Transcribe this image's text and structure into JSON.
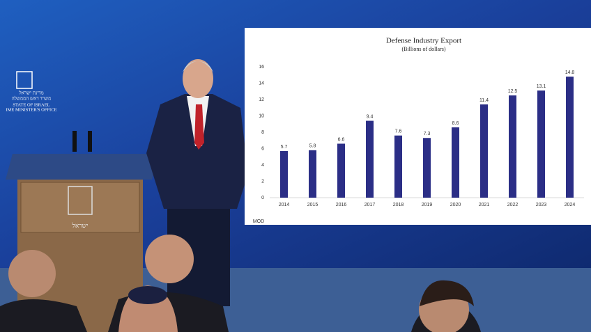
{
  "emblem": {
    "hebrew_1": "מדינת ישראל",
    "hebrew_2": "משרד ראש הממשלה",
    "english_1": "STATE OF ISRAEL",
    "english_2": "IME MINISTER'S OFFICE"
  },
  "podium": {
    "label": "ישראל"
  },
  "chart_data": {
    "type": "bar",
    "title": "Defense Industry Export",
    "subtitle": "(Billions of dollars)",
    "categories": [
      "2014",
      "2015",
      "2016",
      "2017",
      "2018",
      "2019",
      "2020",
      "2021",
      "2022",
      "2023",
      "2024"
    ],
    "values": [
      5.7,
      5.8,
      6.6,
      9.4,
      7.6,
      7.3,
      8.6,
      11.4,
      12.5,
      13.1,
      14.8
    ],
    "color": "#2b2e86",
    "ylim": [
      0,
      16
    ],
    "yticks": [
      0,
      2,
      4,
      6,
      8,
      10,
      12,
      14,
      16
    ],
    "grid": false,
    "source": "MOD"
  }
}
